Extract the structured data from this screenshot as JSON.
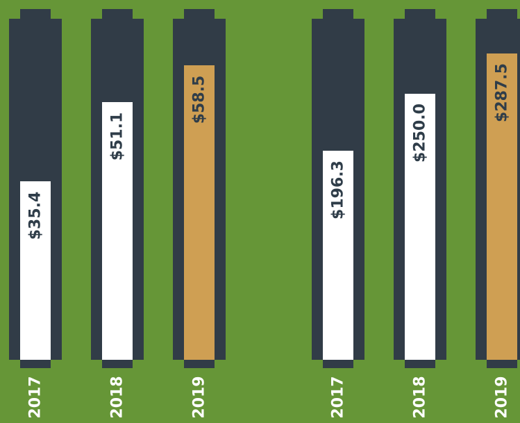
{
  "colors": {
    "background": "#669637",
    "battery": "#313c47",
    "fill_default": "#ffffff",
    "fill_highlight": "#cf9f53",
    "value_text": "#2f3d49",
    "year_text": "#ffffff"
  },
  "chart_data": [
    {
      "type": "bar",
      "categories": [
        "2017",
        "2018",
        "2019"
      ],
      "values": [
        35.4,
        51.1,
        58.5
      ],
      "value_labels": [
        "$35.4",
        "$51.1",
        "$58.5"
      ],
      "highlight_index": 2,
      "ylim": [
        0,
        65.5
      ]
    },
    {
      "type": "bar",
      "categories": [
        "2017",
        "2018",
        "2019"
      ],
      "values": [
        196.3,
        250.0,
        287.5
      ],
      "value_labels": [
        "$196.3",
        "$250.0",
        "$287.5"
      ],
      "highlight_index": 2,
      "ylim": [
        0,
        310
      ]
    }
  ]
}
